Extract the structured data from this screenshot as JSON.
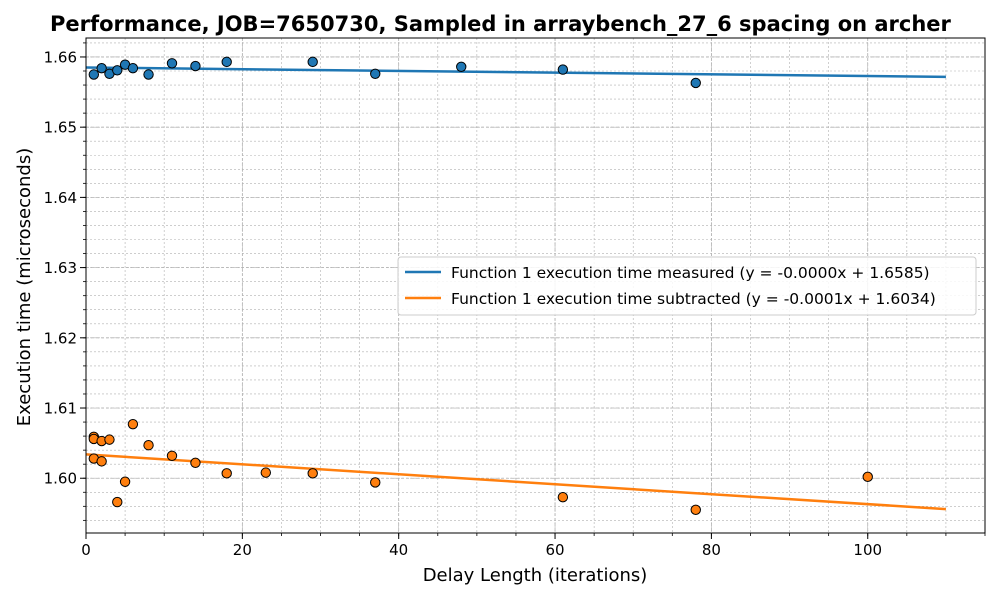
{
  "chart_data": {
    "type": "scatter",
    "title": "Performance, JOB=7650730, Sampled in arraybench_27_6 spacing on archer",
    "xlabel": "Delay Length (iterations)",
    "ylabel": "Execution time (microseconds)",
    "xlim": [
      0,
      115
    ],
    "ylim": [
      1.5922,
      1.6627
    ],
    "x_ticks": [
      0,
      20,
      40,
      60,
      80,
      100
    ],
    "y_ticks": [
      1.6,
      1.61,
      1.62,
      1.63,
      1.64,
      1.65,
      1.66
    ],
    "y_tick_labels": [
      "1.60",
      "1.61",
      "1.62",
      "1.63",
      "1.64",
      "1.65",
      "1.66"
    ],
    "grid": true,
    "minor_grid": true,
    "legend_position": "center-right",
    "series": [
      {
        "name": "Function 1 execution time measured (y = -0.0000x + 1.6585)",
        "color": "#1f77b4",
        "points": [
          [
            1,
            1.6575
          ],
          [
            2,
            1.6584
          ],
          [
            3,
            1.6576
          ],
          [
            4,
            1.6581
          ],
          [
            5,
            1.6589
          ],
          [
            6,
            1.6584
          ],
          [
            8,
            1.6575
          ],
          [
            11,
            1.6591
          ],
          [
            14,
            1.6587
          ],
          [
            18,
            1.6593
          ],
          [
            29,
            1.6593
          ],
          [
            37,
            1.6576
          ],
          [
            48,
            1.6586
          ],
          [
            61,
            1.6582
          ],
          [
            78,
            1.6563
          ]
        ],
        "fit": {
          "slope": -1.21e-05,
          "intercept": 1.6585,
          "x_range": [
            0,
            110
          ]
        }
      },
      {
        "name": "Function 1 execution time subtracted (y = -0.0001x + 1.6034)",
        "color": "#ff7f0e",
        "points": [
          [
            1,
            1.6059
          ],
          [
            1,
            1.6056
          ],
          [
            1,
            1.6028
          ],
          [
            2,
            1.6053
          ],
          [
            2,
            1.6024
          ],
          [
            3,
            1.6055
          ],
          [
            4,
            1.5966
          ],
          [
            5,
            1.5995
          ],
          [
            6,
            1.6077
          ],
          [
            8,
            1.6047
          ],
          [
            11,
            1.6032
          ],
          [
            14,
            1.6022
          ],
          [
            18,
            1.6007
          ],
          [
            23,
            1.6008
          ],
          [
            29,
            1.6007
          ],
          [
            37,
            1.5994
          ],
          [
            61,
            1.5973
          ],
          [
            78,
            1.5955
          ],
          [
            100,
            1.6002
          ]
        ],
        "fit": {
          "slope": -7.09e-05,
          "intercept": 1.6034,
          "x_range": [
            0,
            110
          ]
        }
      }
    ]
  }
}
